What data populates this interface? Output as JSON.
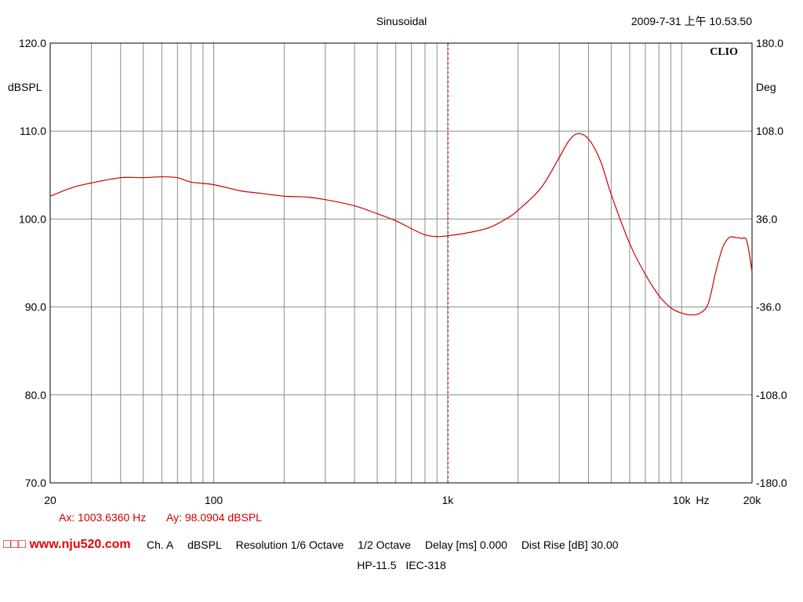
{
  "header": {
    "title": "Sinusoidal",
    "timestamp": "2009-7-31 上午 10.53.50",
    "brand": "CLIO"
  },
  "chart_data": {
    "type": "line",
    "title": "Sinusoidal",
    "xscale": "log",
    "xlim": [
      20,
      20000
    ],
    "ylim": [
      70,
      120
    ],
    "ylim_right": [
      -180,
      180
    ],
    "ylabel": "dBSPL",
    "ylabel_right": "Deg",
    "xunit": "Hz",
    "grid": true,
    "x_tick_labels": [
      {
        "value": 20,
        "label": "20"
      },
      {
        "value": 100,
        "label": "100"
      },
      {
        "value": 1000,
        "label": "1k"
      },
      {
        "value": 10000,
        "label": "10k"
      },
      {
        "value": 20000,
        "label": "20k"
      }
    ],
    "y_tick_labels": [
      "120.0",
      "110.0",
      "100.0",
      "90.0",
      "80.0",
      "70.0"
    ],
    "y_tick_values": [
      120,
      110,
      100,
      90,
      80,
      70
    ],
    "y_right_tick_labels": [
      "180.0",
      "108.0",
      "36.0",
      "-36.0",
      "-108.0",
      "-180.0"
    ],
    "cursor": {
      "x": 1003.636,
      "color": "#cc0000"
    },
    "series": [
      {
        "color": "#cc0000",
        "x": [
          20,
          25,
          30,
          40,
          50,
          60,
          70,
          80,
          100,
          130,
          150,
          200,
          250,
          300,
          400,
          500,
          600,
          700,
          800,
          900,
          1000,
          1200,
          1500,
          1800,
          2000,
          2500,
          3000,
          3300,
          3600,
          4000,
          4500,
          5000,
          6000,
          7000,
          8000,
          9000,
          10000,
          11000,
          12000,
          13000,
          14000,
          15000,
          16000,
          17000,
          18000,
          19000,
          20000
        ],
        "y": [
          102.6,
          103.6,
          104.1,
          104.7,
          104.7,
          104.8,
          104.7,
          104.2,
          103.9,
          103.2,
          103.0,
          102.6,
          102.5,
          102.2,
          101.5,
          100.6,
          99.8,
          98.9,
          98.2,
          98.0,
          98.1,
          98.4,
          99.0,
          100.1,
          101.0,
          103.5,
          107.0,
          108.9,
          109.7,
          109.1,
          106.6,
          102.8,
          97.2,
          93.7,
          91.3,
          89.9,
          89.3,
          89.1,
          89.3,
          90.4,
          94.0,
          96.8,
          97.9,
          97.9,
          97.8,
          97.5,
          94.0
        ]
      }
    ]
  },
  "readout": {
    "ax": "Ax: 1003.6360 Hz",
    "ay": "Ay: 98.0904 dBSPL"
  },
  "watermark": "□□□ www.nju520.com",
  "settings": {
    "channel": "Ch. A",
    "unit": "dBSPL",
    "resolution": "Resolution 1/6 Octave",
    "smoothing": "1/2 Octave",
    "delay": "Delay [ms] 0.000",
    "dist_rise": "Dist Rise [dB] 30.00"
  },
  "model": {
    "name": "HP-11.5",
    "code": "IEC-318"
  }
}
